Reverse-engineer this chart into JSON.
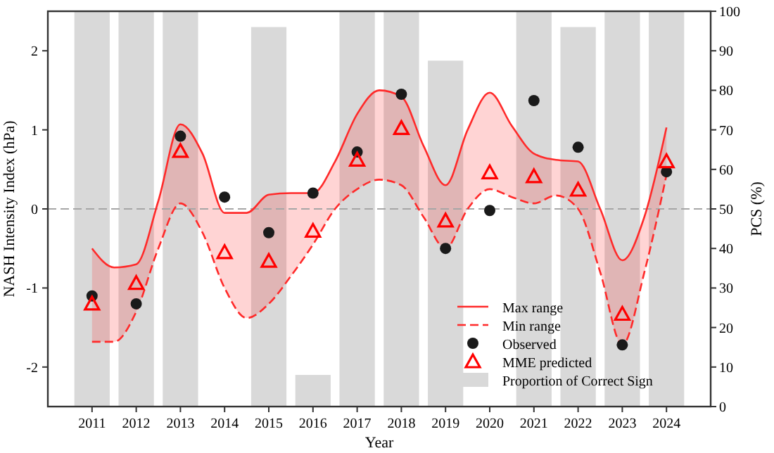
{
  "chart_data": {
    "type": "line",
    "xlabel": "Year",
    "ylabel": "NASH Intensity Index (hPa)",
    "y2label": "PCS (%)",
    "xlim": [
      2010,
      2025
    ],
    "xticks": [
      2011,
      2012,
      2013,
      2014,
      2015,
      2016,
      2017,
      2018,
      2019,
      2020,
      2021,
      2022,
      2023,
      2024
    ],
    "ylim": [
      -2.5,
      2.5
    ],
    "yticks": [
      -2,
      -1,
      0,
      1,
      2
    ],
    "y2lim": [
      0,
      100
    ],
    "y2ticks": [
      0,
      10,
      20,
      30,
      40,
      50,
      60,
      70,
      80,
      90,
      100
    ],
    "grid": false,
    "legend": "bottom right",
    "ref_lines": [
      {
        "axis": "y",
        "value": 0,
        "color": "#a6a6a6",
        "line_style": "dashed"
      }
    ],
    "series": [
      {
        "name": "Max range",
        "color": "#ff2a2a",
        "line_style": "solid",
        "marker": "none",
        "x": [
          2011,
          2011.5,
          2012,
          2012.5,
          2013,
          2013.5,
          2014,
          2014.5,
          2015,
          2015.5,
          2016,
          2016.5,
          2017,
          2017.5,
          2018,
          2018.5,
          2019,
          2019.5,
          2020,
          2020.5,
          2021,
          2021.5,
          2022,
          2022.5,
          2023,
          2023.5,
          2024
        ],
        "values": [
          -0.5,
          -0.74,
          -0.7,
          0.1,
          1.07,
          0.7,
          -0.05,
          -0.05,
          0.18,
          0.2,
          0.2,
          0.6,
          1.2,
          1.5,
          1.42,
          0.8,
          0.3,
          1.0,
          1.47,
          1.05,
          0.7,
          0.62,
          0.6,
          0.0,
          -0.65,
          -0.1,
          1.03
        ],
        "lower": [
          -1.68,
          -1.68,
          -1.3,
          -0.5,
          0.07,
          -0.3,
          -1.0,
          -1.38,
          -1.2,
          -0.85,
          -0.45,
          0.0,
          0.25,
          0.37,
          0.3,
          -0.1,
          -0.5,
          0.0,
          0.25,
          0.15,
          0.07,
          0.17,
          0.0,
          -0.8,
          -1.72,
          -0.8,
          0.43
        ],
        "upper": [
          -0.5,
          -0.74,
          -0.7,
          0.1,
          1.07,
          0.7,
          -0.05,
          -0.05,
          0.18,
          0.2,
          0.2,
          0.6,
          1.2,
          1.5,
          1.42,
          0.8,
          0.3,
          1.0,
          1.47,
          1.05,
          0.7,
          0.62,
          0.6,
          0.0,
          -0.65,
          -0.1,
          1.03
        ]
      },
      {
        "name": "Min range",
        "color": "#ff2a2a",
        "line_style": "dashed",
        "marker": "none",
        "x": [
          2011,
          2011.5,
          2012,
          2012.5,
          2013,
          2013.5,
          2014,
          2014.5,
          2015,
          2015.5,
          2016,
          2016.5,
          2017,
          2017.5,
          2018,
          2018.5,
          2019,
          2019.5,
          2020,
          2020.5,
          2021,
          2021.5,
          2022,
          2022.5,
          2023,
          2023.5,
          2024
        ],
        "values": [
          -1.68,
          -1.68,
          -1.3,
          -0.5,
          0.07,
          -0.3,
          -1.0,
          -1.38,
          -1.2,
          -0.85,
          -0.45,
          0.0,
          0.25,
          0.37,
          0.3,
          -0.1,
          -0.5,
          0.0,
          0.25,
          0.15,
          0.07,
          0.17,
          0.0,
          -0.8,
          -1.72,
          -0.8,
          0.43
        ]
      },
      {
        "name": "Observed",
        "type": "scatter",
        "color": "#1a1a1a",
        "marker": "circle",
        "x": [
          2011,
          2012,
          2013,
          2014,
          2015,
          2016,
          2017,
          2018,
          2019,
          2020,
          2021,
          2022,
          2023,
          2024
        ],
        "values": [
          -1.1,
          -1.2,
          0.92,
          0.15,
          -0.3,
          0.2,
          0.72,
          1.45,
          -0.5,
          -0.02,
          1.37,
          0.78,
          -1.72,
          0.47
        ]
      },
      {
        "name": "MME predicted",
        "type": "scatter",
        "color": "#ff0000",
        "marker": "triangle",
        "x": [
          2011,
          2012,
          2013,
          2014,
          2015,
          2016,
          2017,
          2018,
          2019,
          2020,
          2021,
          2022,
          2023,
          2024
        ],
        "values": [
          -1.2,
          -0.94,
          0.73,
          -0.55,
          -0.66,
          -0.28,
          0.62,
          1.02,
          -0.15,
          0.46,
          0.41,
          0.24,
          -1.33,
          0.6
        ]
      },
      {
        "name": "Proportion of Correct Sign",
        "type": "bar",
        "axis": "y2",
        "color": "#d9d9d9",
        "x": [
          2011,
          2012,
          2013,
          2014,
          2015,
          2016,
          2017,
          2018,
          2019,
          2020,
          2021,
          2022,
          2023,
          2024
        ],
        "values": [
          100,
          100,
          100,
          0,
          96,
          8,
          100,
          100,
          87.5,
          0,
          100,
          96,
          100,
          100
        ]
      }
    ]
  }
}
